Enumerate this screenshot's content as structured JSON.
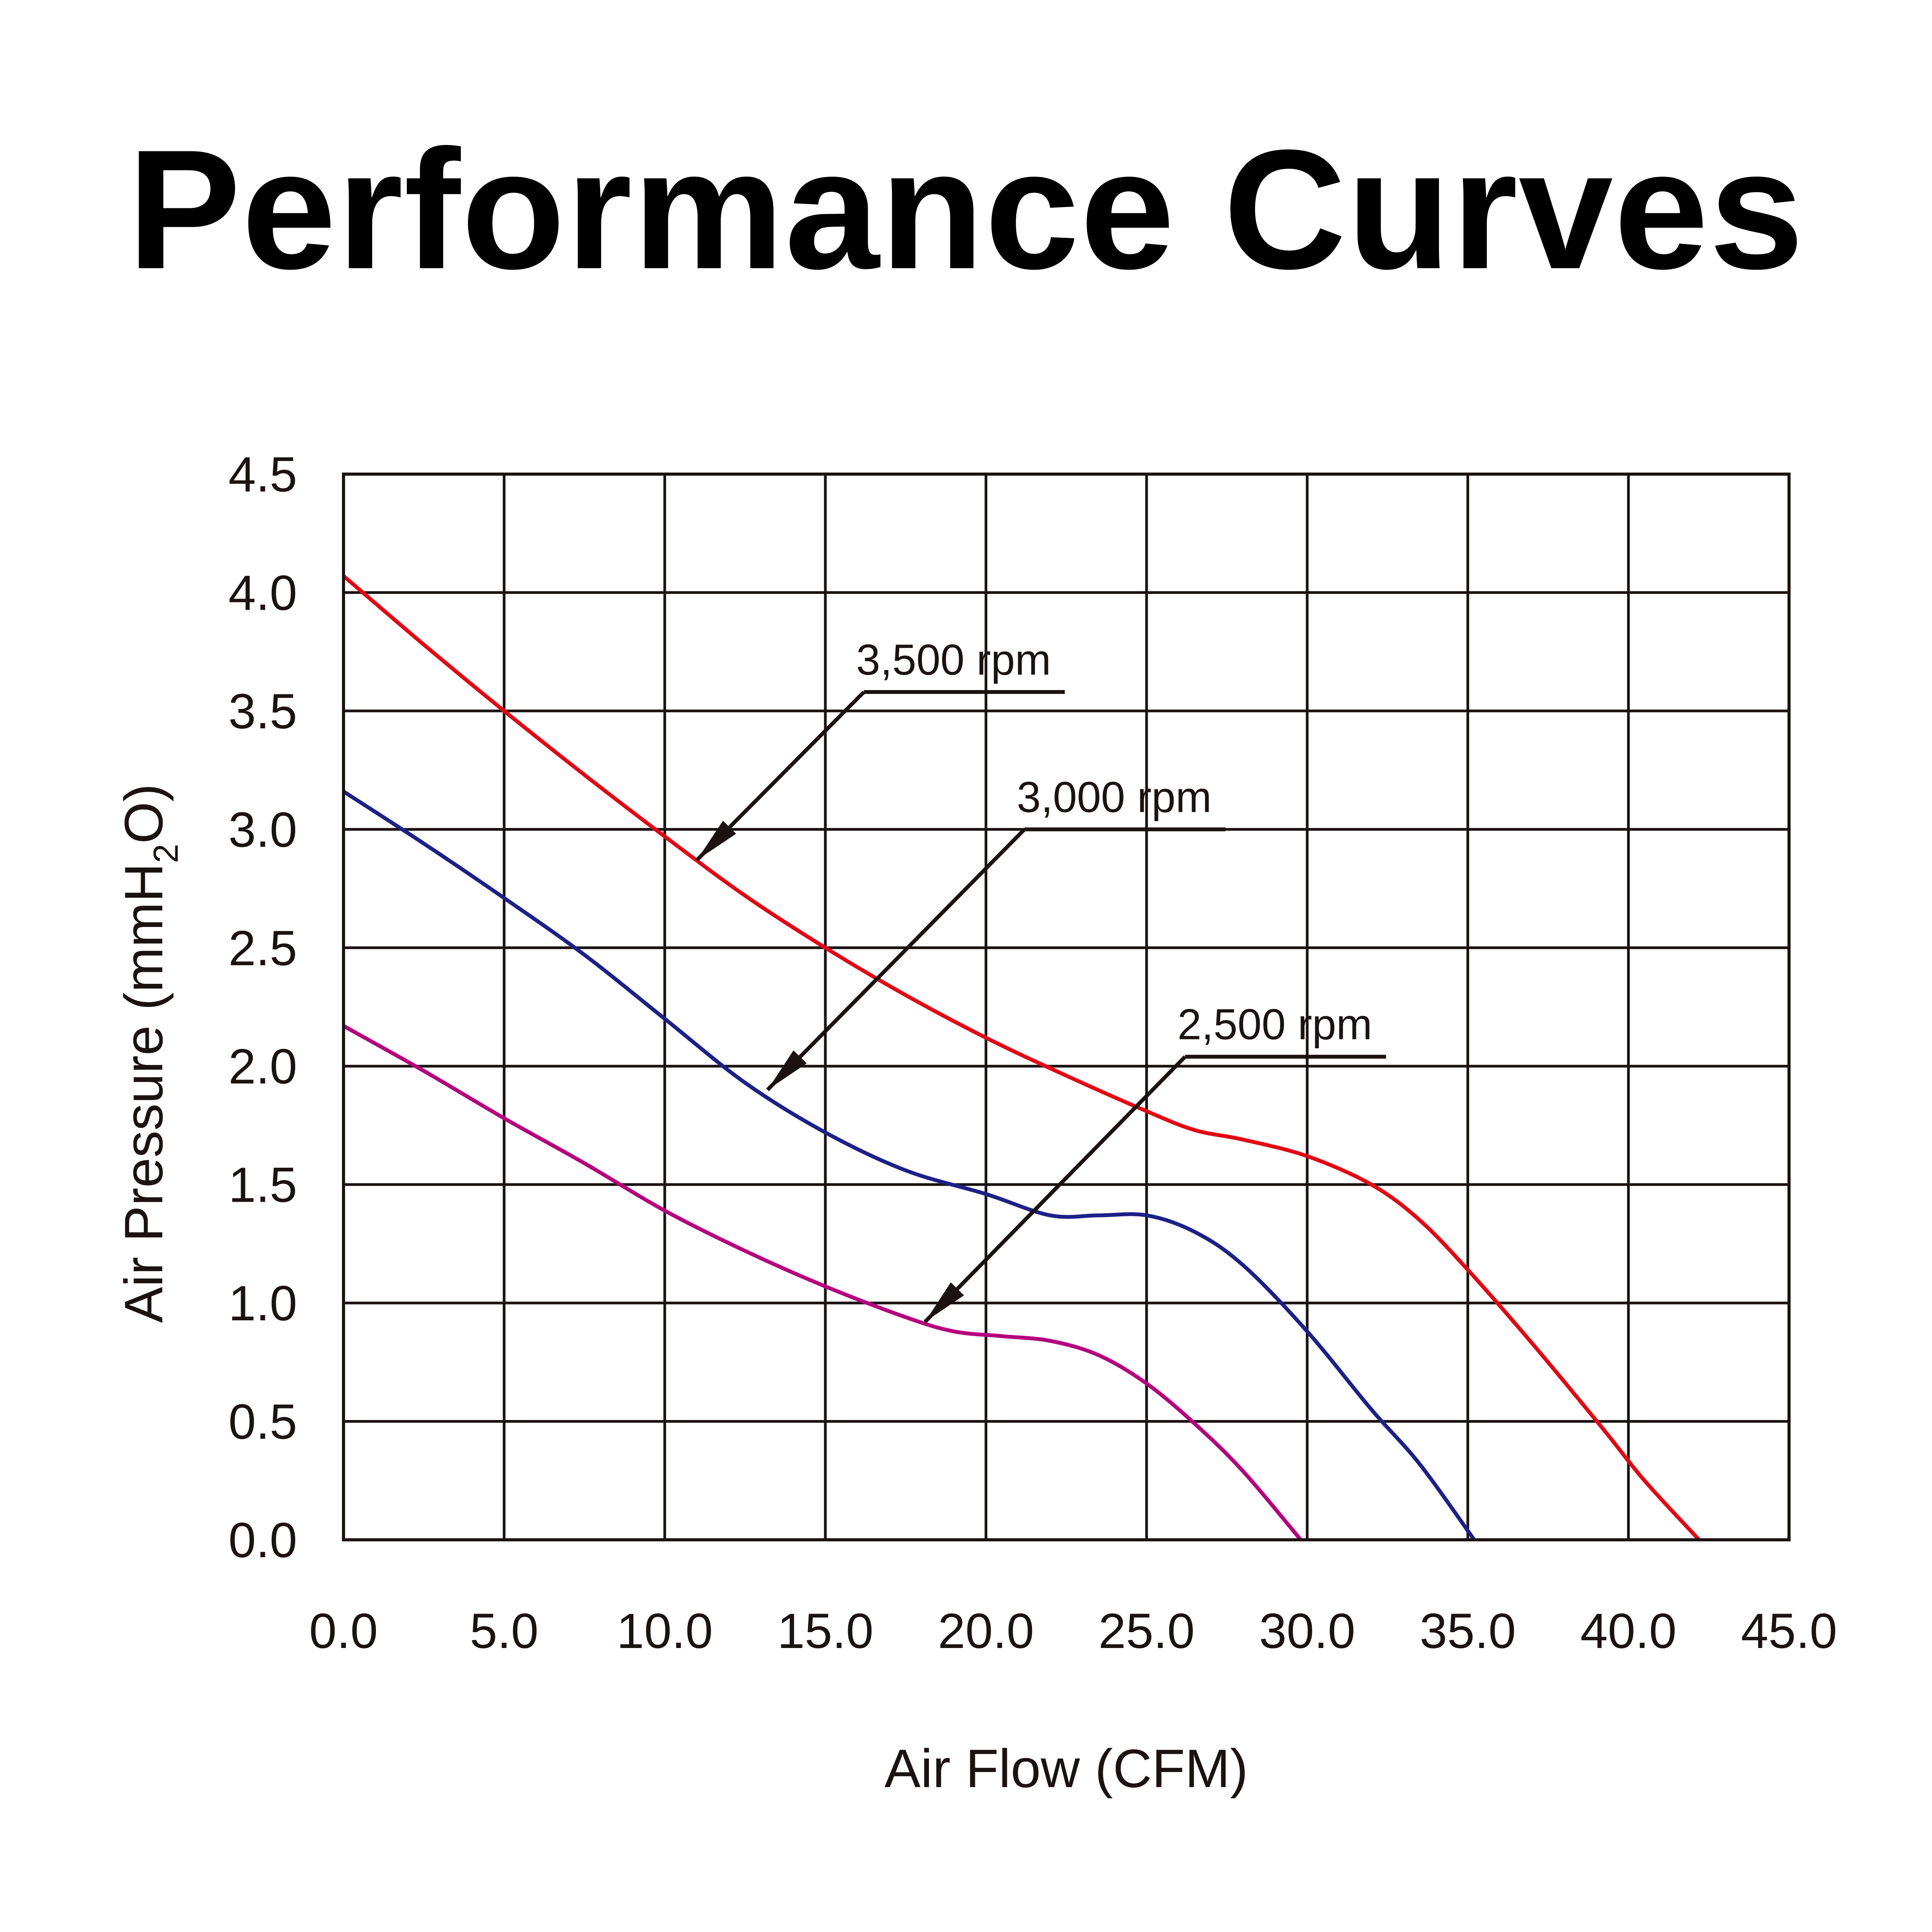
{
  "chart_data": {
    "type": "line",
    "title": "Performance Curves",
    "xlabel": "Air Flow (CFM)",
    "ylabel_parts": {
      "main": "Air Pressure (mmH",
      "sub": "2",
      "tail": "O)"
    },
    "ylabel": "Air Pressure (mmH2O)",
    "xlim": [
      0,
      45
    ],
    "ylim": [
      0,
      4.5
    ],
    "grid": true,
    "x_ticks": [
      0,
      5,
      10,
      15,
      20,
      25,
      30,
      35,
      40,
      45
    ],
    "x_tick_labels": [
      "0.0",
      "5.0",
      "10.0",
      "15.0",
      "20.0",
      "25.0",
      "30.0",
      "35.0",
      "40.0",
      "45.0"
    ],
    "y_ticks": [
      0,
      0.5,
      1,
      1.5,
      2,
      2.5,
      3,
      3.5,
      4,
      4.5
    ],
    "y_tick_labels": [
      "0.0",
      "0.5",
      "1.0",
      "1.5",
      "2.0",
      "2.5",
      "3.0",
      "3.5",
      "4.0",
      "4.5"
    ],
    "series": [
      {
        "name": "3,500 rpm",
        "color": "#e30613",
        "points": [
          [
            0,
            4.07
          ],
          [
            2.5,
            3.78
          ],
          [
            5,
            3.5
          ],
          [
            7.5,
            3.23
          ],
          [
            10,
            2.97
          ],
          [
            12.5,
            2.72
          ],
          [
            15,
            2.5
          ],
          [
            17.5,
            2.3
          ],
          [
            20,
            2.12
          ],
          [
            22.5,
            1.96
          ],
          [
            25,
            1.81
          ],
          [
            26.5,
            1.73
          ],
          [
            28,
            1.69
          ],
          [
            30,
            1.62
          ],
          [
            32,
            1.5
          ],
          [
            33.5,
            1.35
          ],
          [
            35,
            1.14
          ],
          [
            37,
            0.83
          ],
          [
            39.2,
            0.47
          ],
          [
            40.5,
            0.25
          ],
          [
            42.2,
            0.0
          ]
        ],
        "annotation": {
          "label": "3,500 rpm",
          "label_at": [
            17.8,
            3.58
          ],
          "leader_start": [
            16.2,
            3.58
          ],
          "arrow_to": [
            11.0,
            2.87
          ]
        }
      },
      {
        "name": "3,000 rpm",
        "color": "#1d2087",
        "points": [
          [
            0,
            3.16
          ],
          [
            2.5,
            2.94
          ],
          [
            5,
            2.71
          ],
          [
            7.5,
            2.47
          ],
          [
            10,
            2.2
          ],
          [
            12.5,
            1.93
          ],
          [
            15,
            1.72
          ],
          [
            17.5,
            1.56
          ],
          [
            20,
            1.46
          ],
          [
            22,
            1.37
          ],
          [
            23.5,
            1.37
          ],
          [
            25,
            1.37
          ],
          [
            26.5,
            1.3
          ],
          [
            28,
            1.16
          ],
          [
            30,
            0.88
          ],
          [
            32,
            0.55
          ],
          [
            33.5,
            0.32
          ],
          [
            35.2,
            0.0
          ]
        ],
        "annotation": {
          "label": "3,000 rpm",
          "label_at": [
            22.8,
            3.0
          ],
          "leader_start": [
            21.2,
            3.0
          ],
          "arrow_to": [
            13.2,
            1.9
          ]
        }
      },
      {
        "name": "2,500 rpm",
        "color": "#b5007e",
        "points": [
          [
            0,
            2.17
          ],
          [
            2.5,
            1.98
          ],
          [
            5,
            1.78
          ],
          [
            7.5,
            1.59
          ],
          [
            10,
            1.39
          ],
          [
            12.5,
            1.22
          ],
          [
            15,
            1.07
          ],
          [
            17.5,
            0.94
          ],
          [
            19,
            0.88
          ],
          [
            20.5,
            0.86
          ],
          [
            22,
            0.84
          ],
          [
            23.5,
            0.78
          ],
          [
            25,
            0.66
          ],
          [
            26.5,
            0.49
          ],
          [
            28,
            0.29
          ],
          [
            29.8,
            0.0
          ]
        ],
        "annotation": {
          "label": "2,500 rpm",
          "label_at": [
            27.8,
            2.04
          ],
          "leader_start": [
            26.2,
            2.04
          ],
          "arrow_to": [
            18.1,
            0.92
          ]
        }
      }
    ]
  }
}
